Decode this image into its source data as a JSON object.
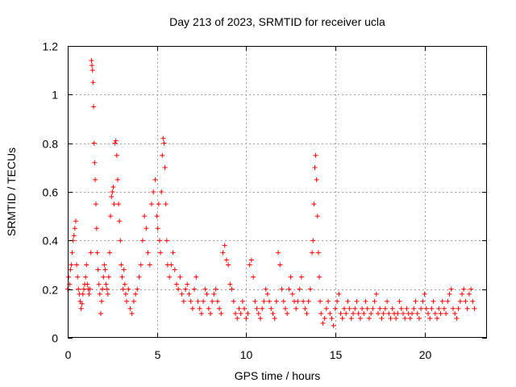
{
  "chart_data": {
    "type": "scatter",
    "title": "Day 213 of 2023, SRMTID for receiver ucla",
    "xlabel": "GPS time / hours",
    "ylabel": "SRMTID / TECUs",
    "xlim": [
      0,
      23.5
    ],
    "ylim": [
      0,
      1.2
    ],
    "xticks": [
      0,
      5,
      10,
      15,
      20
    ],
    "xtick_labels": [
      "0",
      "5",
      "10",
      "15",
      "20"
    ],
    "yticks": [
      0,
      0.2,
      0.4,
      0.6,
      0.8,
      1,
      1.2
    ],
    "ytick_labels": [
      "0",
      "0.2",
      "0.4",
      "0.6",
      "0.8",
      "1",
      "1.2"
    ],
    "grid": true,
    "marker": "plus",
    "color": "#ff0000",
    "series": [
      {
        "name": "SRMTID",
        "x": [
          0.0,
          0.05,
          0.1,
          0.15,
          0.2,
          0.25,
          0.3,
          0.35,
          0.4,
          0.45,
          0.5,
          0.55,
          0.6,
          0.65,
          0.7,
          0.75,
          0.8,
          0.85,
          0.9,
          0.95,
          1.0,
          1.05,
          1.1,
          1.15,
          1.2,
          1.25,
          1.3,
          1.33,
          1.36,
          1.39,
          1.42,
          1.45,
          1.48,
          1.51,
          1.54,
          1.58,
          1.62,
          1.66,
          1.7,
          1.75,
          1.8,
          1.85,
          1.9,
          1.95,
          2.0,
          2.05,
          2.1,
          2.15,
          2.2,
          2.25,
          2.3,
          2.35,
          2.4,
          2.45,
          2.5,
          2.55,
          2.6,
          2.65,
          2.7,
          2.75,
          2.8,
          2.85,
          2.9,
          2.95,
          3.0,
          3.05,
          3.1,
          3.15,
          3.2,
          3.25,
          3.3,
          3.4,
          3.5,
          3.6,
          3.7,
          3.8,
          3.9,
          4.0,
          4.1,
          4.2,
          4.3,
          4.4,
          4.5,
          4.6,
          4.7,
          4.8,
          4.9,
          5.0,
          5.05,
          5.1,
          5.15,
          5.2,
          5.25,
          5.3,
          5.35,
          5.4,
          5.45,
          5.5,
          5.55,
          5.6,
          5.7,
          5.8,
          5.9,
          6.0,
          6.1,
          6.2,
          6.3,
          6.4,
          6.5,
          6.6,
          6.7,
          6.8,
          6.9,
          7.0,
          7.1,
          7.2,
          7.3,
          7.4,
          7.5,
          7.6,
          7.7,
          7.8,
          7.9,
          8.0,
          8.1,
          8.2,
          8.3,
          8.4,
          8.5,
          8.6,
          8.7,
          8.8,
          8.9,
          9.0,
          9.1,
          9.2,
          9.3,
          9.4,
          9.5,
          9.6,
          9.7,
          9.8,
          9.9,
          10.0,
          10.1,
          10.2,
          10.3,
          10.4,
          10.5,
          10.6,
          10.7,
          10.8,
          10.9,
          11.0,
          11.1,
          11.2,
          11.3,
          11.4,
          11.5,
          11.6,
          11.7,
          11.8,
          11.9,
          12.0,
          12.1,
          12.2,
          12.3,
          12.4,
          12.5,
          12.6,
          12.7,
          12.8,
          12.9,
          13.0,
          13.1,
          13.2,
          13.3,
          13.4,
          13.5,
          13.6,
          13.7,
          13.75,
          13.8,
          13.85,
          13.9,
          13.95,
          14.0,
          14.05,
          14.1,
          14.15,
          14.2,
          14.3,
          14.4,
          14.5,
          14.6,
          14.7,
          14.8,
          14.9,
          15.0,
          15.1,
          15.2,
          15.3,
          15.4,
          15.5,
          15.6,
          15.7,
          15.8,
          15.9,
          16.0,
          16.1,
          16.2,
          16.3,
          16.4,
          16.5,
          16.6,
          16.7,
          16.8,
          16.9,
          17.0,
          17.1,
          17.2,
          17.3,
          17.4,
          17.5,
          17.6,
          17.7,
          17.8,
          17.9,
          18.0,
          18.1,
          18.2,
          18.3,
          18.4,
          18.5,
          18.6,
          18.7,
          18.8,
          18.9,
          19.0,
          19.1,
          19.2,
          19.3,
          19.4,
          19.5,
          19.6,
          19.7,
          19.8,
          19.9,
          20.0,
          20.1,
          20.2,
          20.3,
          20.4,
          20.5,
          20.6,
          20.7,
          20.8,
          20.9,
          21.0,
          21.1,
          21.2,
          21.3,
          21.4,
          21.5,
          21.6,
          21.7,
          21.8,
          21.9,
          22.0,
          22.1,
          22.2,
          22.3,
          22.4,
          22.5,
          22.6,
          22.7,
          22.8
        ],
        "y": [
          0.2,
          0.25,
          0.22,
          0.28,
          0.3,
          0.35,
          0.4,
          0.42,
          0.45,
          0.48,
          0.3,
          0.25,
          0.2,
          0.18,
          0.15,
          0.12,
          0.14,
          0.18,
          0.2,
          0.22,
          0.25,
          0.3,
          0.22,
          0.2,
          0.18,
          0.2,
          0.35,
          1.14,
          1.12,
          1.1,
          1.05,
          0.95,
          0.8,
          0.72,
          0.65,
          0.55,
          0.45,
          0.35,
          0.28,
          0.22,
          0.18,
          0.1,
          0.15,
          0.2,
          0.25,
          0.3,
          0.28,
          0.22,
          0.2,
          0.18,
          0.25,
          0.35,
          0.5,
          0.58,
          0.6,
          0.62,
          0.55,
          0.8,
          0.81,
          0.75,
          0.65,
          0.55,
          0.48,
          0.4,
          0.3,
          0.25,
          0.2,
          0.28,
          0.22,
          0.18,
          0.15,
          0.2,
          0.12,
          0.1,
          0.15,
          0.18,
          0.2,
          0.25,
          0.3,
          0.4,
          0.5,
          0.45,
          0.35,
          0.3,
          0.55,
          0.6,
          0.65,
          0.5,
          0.45,
          0.55,
          0.4,
          0.35,
          0.6,
          0.75,
          0.82,
          0.8,
          0.7,
          0.55,
          0.4,
          0.3,
          0.25,
          0.3,
          0.35,
          0.28,
          0.22,
          0.2,
          0.25,
          0.18,
          0.15,
          0.2,
          0.22,
          0.18,
          0.15,
          0.12,
          0.2,
          0.25,
          0.15,
          0.12,
          0.1,
          0.15,
          0.2,
          0.18,
          0.12,
          0.1,
          0.15,
          0.18,
          0.2,
          0.15,
          0.12,
          0.1,
          0.35,
          0.38,
          0.32,
          0.3,
          0.22,
          0.2,
          0.15,
          0.1,
          0.08,
          0.12,
          0.1,
          0.15,
          0.12,
          0.08,
          0.1,
          0.3,
          0.32,
          0.25,
          0.15,
          0.12,
          0.1,
          0.08,
          0.12,
          0.15,
          0.2,
          0.18,
          0.15,
          0.12,
          0.1,
          0.08,
          0.15,
          0.35,
          0.3,
          0.2,
          0.15,
          0.12,
          0.1,
          0.2,
          0.25,
          0.18,
          0.15,
          0.12,
          0.15,
          0.2,
          0.25,
          0.15,
          0.12,
          0.1,
          0.15,
          0.2,
          0.35,
          0.4,
          0.55,
          0.7,
          0.75,
          0.65,
          0.5,
          0.35,
          0.25,
          0.15,
          0.1,
          0.06,
          0.08,
          0.12,
          0.15,
          0.1,
          0.08,
          0.05,
          0.12,
          0.15,
          0.18,
          0.1,
          0.08,
          0.12,
          0.1,
          0.15,
          0.12,
          0.08,
          0.1,
          0.12,
          0.15,
          0.1,
          0.08,
          0.12,
          0.1,
          0.15,
          0.12,
          0.08,
          0.1,
          0.12,
          0.15,
          0.18,
          0.1,
          0.12,
          0.08,
          0.1,
          0.12,
          0.15,
          0.1,
          0.08,
          0.12,
          0.1,
          0.08,
          0.1,
          0.15,
          0.12,
          0.1,
          0.08,
          0.12,
          0.1,
          0.08,
          0.1,
          0.12,
          0.15,
          0.1,
          0.08,
          0.12,
          0.15,
          0.18,
          0.12,
          0.1,
          0.08,
          0.12,
          0.15,
          0.1,
          0.08,
          0.12,
          0.1,
          0.15,
          0.12,
          0.1,
          0.15,
          0.18,
          0.2,
          0.12,
          0.1,
          0.08,
          0.12,
          0.15,
          0.18,
          0.2,
          0.15,
          0.12,
          0.18,
          0.2,
          0.15,
          0.12
        ]
      }
    ]
  }
}
